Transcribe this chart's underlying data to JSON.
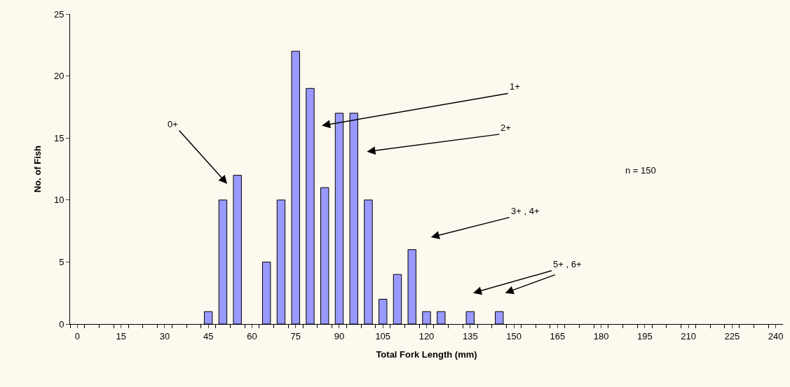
{
  "chart_data": {
    "type": "bar",
    "xlabel": "Total Fork Length (mm)",
    "ylabel": "No. of Fish",
    "categories": [
      "0",
      null,
      null,
      "15",
      null,
      null,
      "30",
      null,
      null,
      "45",
      null,
      null,
      "60",
      null,
      null,
      "75",
      null,
      null,
      "90",
      null,
      null,
      "105",
      null,
      null,
      "120",
      null,
      null,
      "135",
      null,
      null,
      "150",
      null,
      null,
      "165",
      null,
      null,
      "180",
      null,
      null,
      "195",
      null,
      null,
      "210",
      null,
      null,
      "225",
      null,
      null,
      "240"
    ],
    "values": [
      null,
      null,
      null,
      null,
      null,
      null,
      null,
      null,
      null,
      1,
      10,
      12,
      null,
      5,
      10,
      22,
      19,
      11,
      17,
      17,
      10,
      2,
      4,
      6,
      1,
      1,
      null,
      1,
      null,
      1,
      null,
      null,
      null,
      null,
      null,
      null,
      null,
      null,
      null,
      null,
      null,
      null,
      null,
      null,
      null,
      null,
      null,
      null,
      null
    ],
    "color": "#9999ff",
    "ylim": [
      0,
      25
    ],
    "yticks": [
      0,
      5,
      10,
      15,
      20,
      25
    ],
    "grid": false,
    "annotations": [
      "0+",
      "1+",
      "2+",
      "3+ , 4+",
      "5+ , 6+",
      "n = 150"
    ]
  }
}
